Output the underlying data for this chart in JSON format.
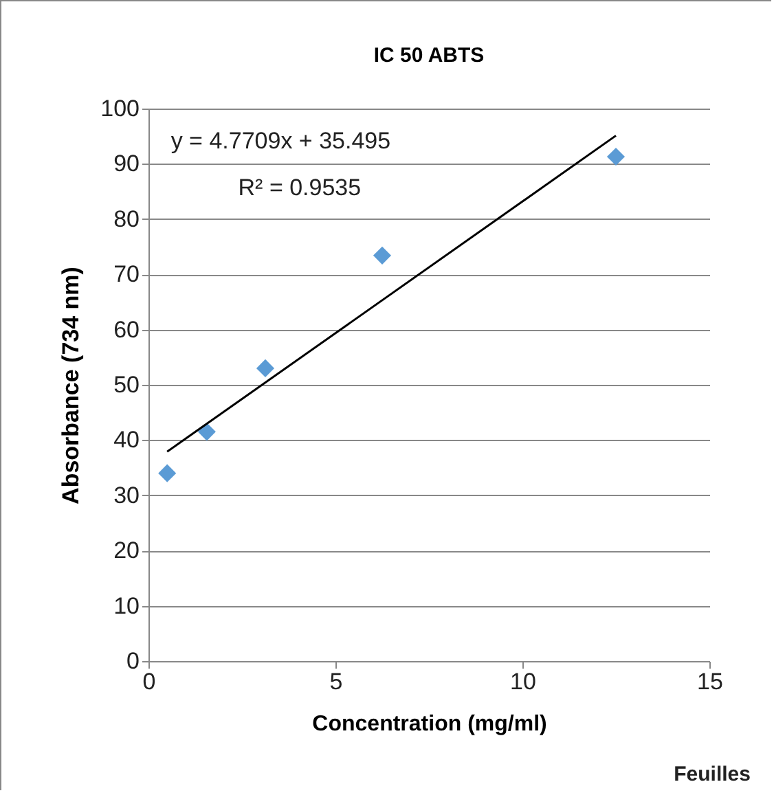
{
  "chart_data": {
    "type": "scatter",
    "title": "IC 50 ABTS",
    "xlabel": "Concentration (mg/ml)",
    "ylabel": "Absorbance (734 nm)",
    "xlim": [
      0,
      15
    ],
    "xticks": [
      0,
      5,
      10,
      15
    ],
    "ylim": [
      0,
      100
    ],
    "yticks": [
      0,
      10,
      20,
      30,
      40,
      50,
      60,
      70,
      80,
      90,
      100
    ],
    "grid": "y",
    "marker": "diamond",
    "series": [
      {
        "color": "#5b9bd5",
        "x": [
          0.5,
          1.56,
          3.125,
          6.25,
          12.5
        ],
        "values": [
          34,
          41.5,
          53,
          73.4,
          91.3
        ]
      },
      {
        "type": "line",
        "color": "#000000",
        "marker": "none",
        "x": [
          0.5,
          12.5
        ],
        "values": [
          37.9,
          95.1
        ]
      }
    ],
    "annotations": [
      "y = 4.7709x + 35.495",
      "R² = 0.9535",
      "Feuilles"
    ]
  }
}
